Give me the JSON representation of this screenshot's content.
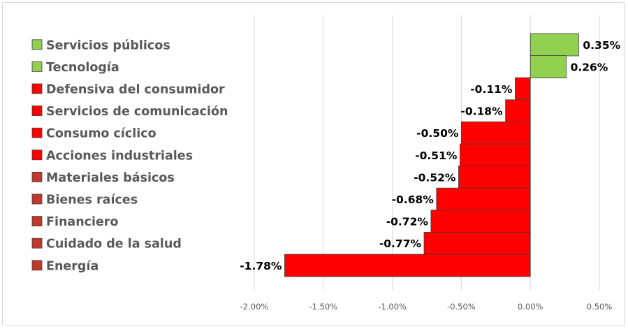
{
  "chart_data": {
    "type": "bar",
    "orientation": "horizontal",
    "categories": [
      "Servicios públicos",
      "Tecnología",
      "Defensiva del consumidor",
      "Servicios de comunicación",
      "Consumo cíclico",
      "Acciones industriales",
      "Materiales básicos",
      "Bienes raíces",
      "Financiero",
      "Cuidado de la salud",
      "Energía"
    ],
    "values": [
      0.35,
      0.26,
      -0.11,
      -0.18,
      -0.5,
      -0.51,
      -0.52,
      -0.68,
      -0.72,
      -0.77,
      -1.78
    ],
    "data_labels": [
      "0.35%",
      "0.26%",
      "-0.11%",
      "-0.18%",
      "-0.50%",
      "-0.51%",
      "-0.52%",
      "-0.68%",
      "-0.72%",
      "-0.77%",
      "-1.78%"
    ],
    "colors": [
      "#92d050",
      "#92d050",
      "#ff0000",
      "#ff0000",
      "#ff0000",
      "#ff0000",
      "#ff0000",
      "#ff0000",
      "#ff0000",
      "#ff0000",
      "#ff0000"
    ],
    "legend_colors": [
      "#92d050",
      "#92d050",
      "#ff0000",
      "#ff0000",
      "#ff0000",
      "#ff0000",
      "#c0392b",
      "#c0392b",
      "#c0392b",
      "#c0392b",
      "#c0392b"
    ],
    "x_ticks": [
      "-2.00%",
      "-1.50%",
      "-1.00%",
      "-0.50%",
      "0.00%",
      "0.50%"
    ],
    "x_tick_values": [
      -2.0,
      -1.5,
      -1.0,
      -0.5,
      0.0,
      0.5
    ],
    "xlim": [
      -2.0,
      0.5
    ],
    "xlabel": "",
    "ylabel": "",
    "title": "",
    "grid": "vertical",
    "legend_position": "left"
  }
}
